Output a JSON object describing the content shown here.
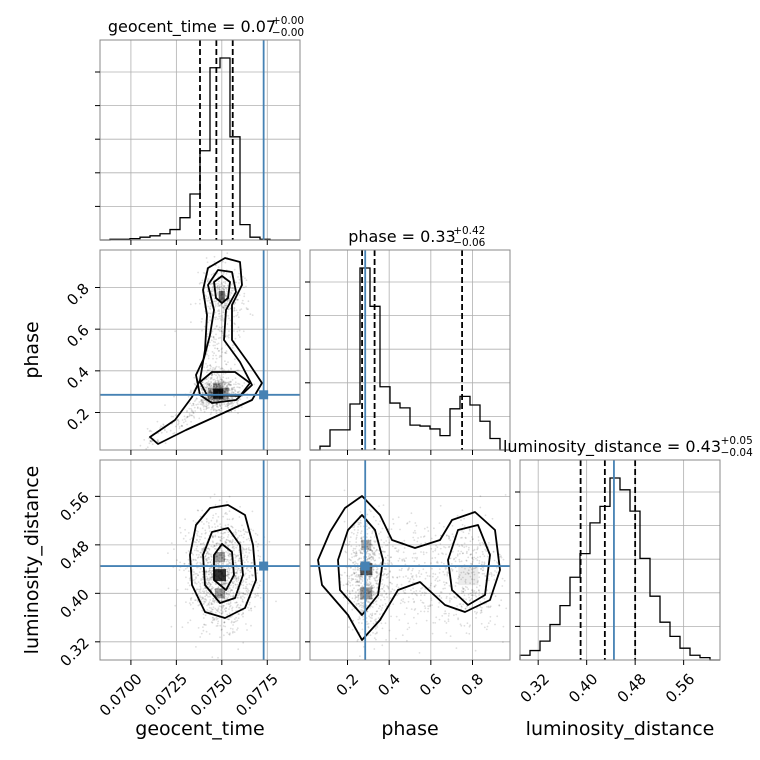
{
  "colors": {
    "truth": "#4682b4",
    "hist": "#000000",
    "grid": "#b0b0b0",
    "frame": "#888888"
  },
  "chart_data": {
    "type": "corner",
    "parameters": [
      "geocent_time",
      "phase",
      "luminosity_distance"
    ],
    "axis_labels": {
      "x": [
        "geocent_time",
        "phase",
        "luminosity_distance"
      ],
      "y": [
        "",
        "phase",
        "luminosity_distance"
      ]
    },
    "titles": [
      {
        "param": "geocent_time",
        "text": "geocent_time = 0.07",
        "sup": "+0.00",
        "sub": "−0.00"
      },
      {
        "param": "phase",
        "text": "phase = 0.33",
        "sup": "+0.42",
        "sub": "−0.06"
      },
      {
        "param": "luminosity_distance",
        "text": "luminosity_distance = 0.43",
        "sup": "+0.05",
        "sub": "−0.04"
      }
    ],
    "ranges": {
      "geocent_time": [
        0.0683,
        0.0793
      ],
      "phase": [
        0.02,
        0.98
      ],
      "luminosity_distance": [
        0.29,
        0.62
      ]
    },
    "ticks": {
      "geocent_time": {
        "values": [
          0.07,
          0.0725,
          0.075,
          0.0775
        ],
        "labels": [
          "0.0700",
          "0.0725",
          "0.0750",
          "0.0775"
        ]
      },
      "phase": {
        "values": [
          0.2,
          0.4,
          0.6,
          0.8
        ],
        "labels": [
          "0.2",
          "0.4",
          "0.6",
          "0.8"
        ]
      },
      "luminosity_distance": {
        "values": [
          0.32,
          0.4,
          0.48,
          0.56
        ],
        "labels": [
          "0.32",
          "0.40",
          "0.48",
          "0.56"
        ]
      }
    },
    "truths": {
      "geocent_time": 0.0773,
      "phase": 0.285,
      "luminosity_distance": 0.445
    },
    "quantiles": {
      "geocent_time": [
        0.0738,
        0.0747,
        0.0756
      ],
      "phase": [
        0.27,
        0.33,
        0.75
      ],
      "luminosity_distance": [
        0.39,
        0.43,
        0.48
      ]
    },
    "histograms": {
      "geocent_time": {
        "edges_start": 0.0683,
        "bin_width": 0.00055,
        "counts": [
          0,
          1,
          1,
          2,
          4,
          6,
          9,
          15,
          32,
          66,
          128,
          247,
          261,
          148,
          22,
          4,
          1,
          0,
          0,
          0
        ]
      },
      "phase": {
        "edges_start": 0.02,
        "bin_width": 0.048,
        "counts": [
          0,
          4,
          21,
          21,
          48,
          190,
          150,
          66,
          49,
          44,
          26,
          25,
          22,
          15,
          43,
          56,
          47,
          30,
          12,
          0
        ]
      },
      "luminosity_distance": {
        "edges_start": 0.29,
        "bin_width": 0.0165,
        "counts": [
          2,
          4,
          8,
          15,
          23,
          35,
          45,
          58,
          65,
          77,
          72,
          63,
          43,
          27,
          16,
          10,
          5,
          2,
          1,
          0
        ]
      }
    },
    "grid": true
  }
}
